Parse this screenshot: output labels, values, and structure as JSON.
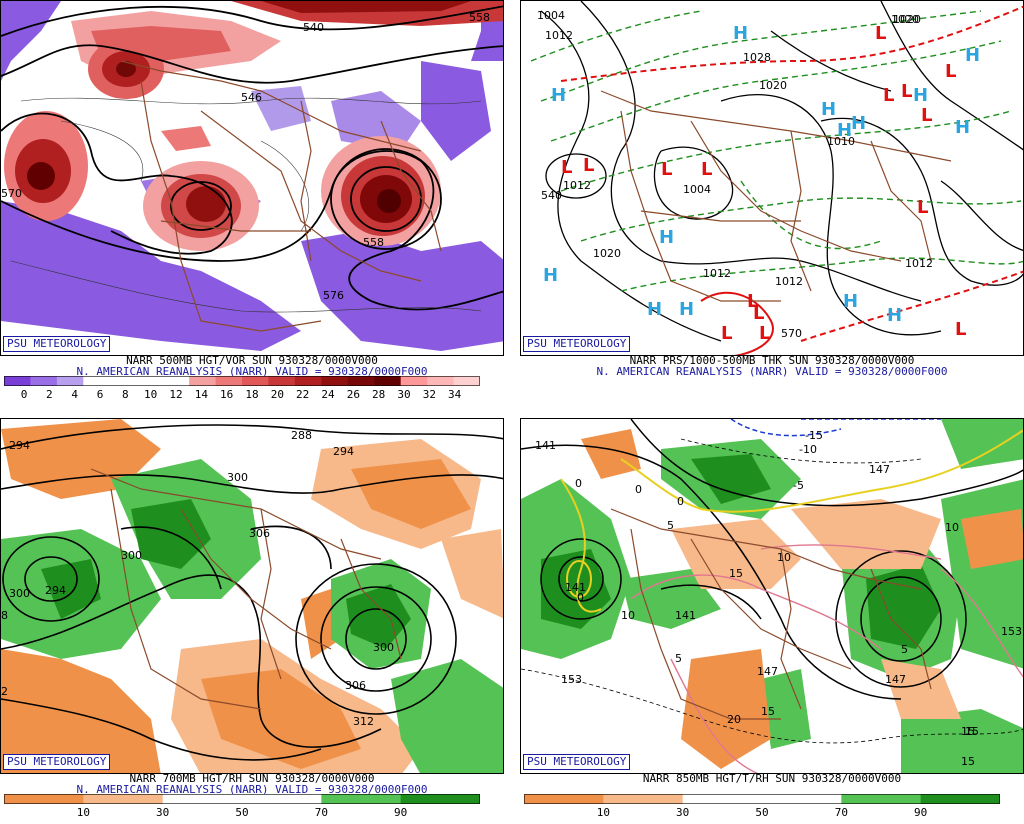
{
  "panels": [
    {
      "id": "vor500",
      "badge": "PSU METEOROLOGY",
      "line1": "NARR 500MB HGT/VOR SUN 930328/0000V000",
      "line2": "N. AMERICAN REANALYSIS (NARR) VALID = 930328/0000F000",
      "colorbar": {
        "labels": [
          "0",
          "2",
          "4",
          "6",
          "8",
          "10",
          "12",
          "14",
          "16",
          "18",
          "20",
          "22",
          "24",
          "26",
          "28",
          "30",
          "32",
          "34"
        ],
        "colors": [
          "#7a3fd6",
          "#9a6ee6",
          "#b8a0ee",
          "#ffffff",
          "#ffffff",
          "#ffffff",
          "#ffffff",
          "#f5a0a0",
          "#ec7878",
          "#e05858",
          "#c83838",
          "#b02020",
          "#901010",
          "#780808",
          "#600000",
          "#ff9999",
          "#ffb6b6",
          "#ffd0d0"
        ]
      },
      "contour_labels": [
        "540",
        "558",
        "546",
        "576",
        "558",
        "570"
      ]
    },
    {
      "id": "prs",
      "badge": "PSU METEOROLOGY",
      "line1": "NARR PRS/1000-500MB THK SUN 930328/0000V000",
      "line2": "N. AMERICAN REANALYSIS (NARR) VALID = 930328/0000F000",
      "contour_labels": [
        "1004",
        "1012",
        "1028",
        "1020",
        "1020",
        "1010",
        "1012",
        "1004",
        "1012",
        "1020",
        "1012",
        "1012",
        "540",
        "570",
        "1020"
      ],
      "highs": "H",
      "lows": "L"
    },
    {
      "id": "rh700",
      "badge": "PSU METEOROLOGY",
      "line1": "NARR 700MB HGT/RH SUN 930328/0000V000",
      "line2": "N. AMERICAN REANALYSIS (NARR) VALID = 930328/0000F000",
      "colorbar": {
        "labels": [
          "10",
          "30",
          "50",
          "70",
          "90"
        ],
        "colors": [
          "#f0914a",
          "#f7b98a",
          "#ffffff",
          "#ffffff",
          "#55c255",
          "#1e8f1e"
        ]
      },
      "contour_labels": [
        "294",
        "288",
        "294",
        "300",
        "306",
        "300",
        "294",
        "300",
        "300",
        "306",
        "312",
        "8",
        "2"
      ]
    },
    {
      "id": "t850",
      "badge": "PSU METEOROLOGY",
      "line1": "NARR 850MB HGT/T/RH SUN 930328/0000V000",
      "colorbar": {
        "labels": [
          "10",
          "30",
          "50",
          "70",
          "90"
        ],
        "colors": [
          "#f0914a",
          "#f7b98a",
          "#ffffff",
          "#ffffff",
          "#55c255",
          "#1e8f1e"
        ]
      },
      "contour_labels": [
        "141",
        "-15",
        "-10",
        "-5",
        "147",
        "0",
        "0",
        "5",
        "0",
        "141",
        "0",
        "10",
        "15",
        "10",
        "141",
        "5",
        "147",
        "153",
        "147",
        "15",
        "20",
        "15",
        "153",
        "5",
        "15",
        "15",
        "10"
      ]
    }
  ],
  "colors": {
    "border": "#8b4a2b",
    "accent": "#1a1aa0",
    "high": "#2aa5e0",
    "low": "#e01010",
    "thick": "#1e8f1e",
    "thickWarm": "#e01010"
  }
}
